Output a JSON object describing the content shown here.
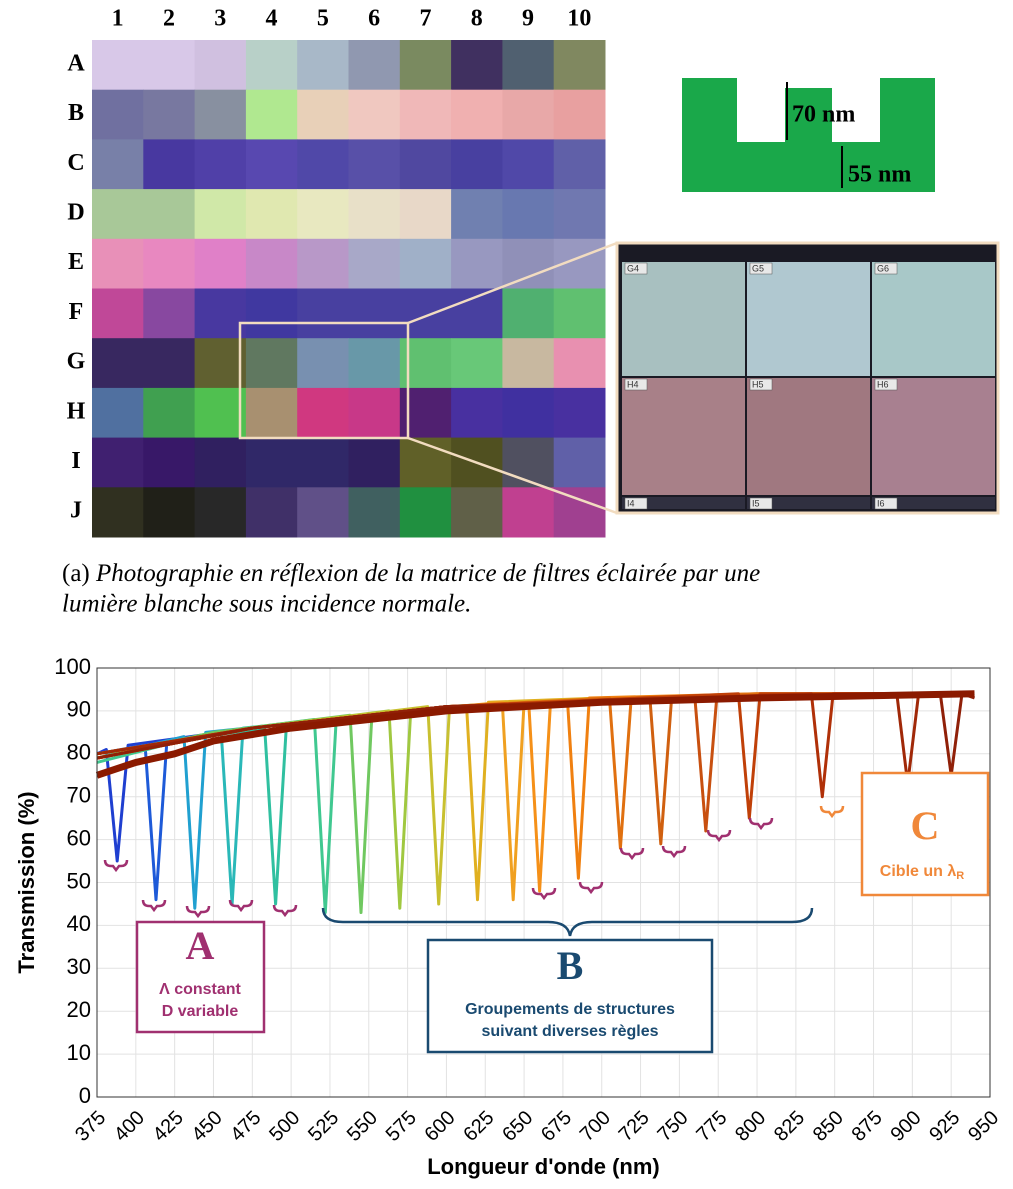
{
  "photo": {
    "columns": [
      "1",
      "2",
      "3",
      "4",
      "5",
      "6",
      "7",
      "8",
      "9",
      "10"
    ],
    "rows": [
      "A",
      "B",
      "C",
      "D",
      "E",
      "F",
      "G",
      "H",
      "I",
      "J"
    ],
    "colors": [
      [
        "#d8c8e8",
        "#d8c8e8",
        "#d0c0e0",
        "#b8d0c8",
        "#a8b8c8",
        "#9098b0",
        "#7a8a60",
        "#403060",
        "#506070",
        "#808860"
      ],
      [
        "#7070a0",
        "#7878a0",
        "#8890a0",
        "#b0e890",
        "#e8d0b8",
        "#f0c8c0",
        "#f0b8b8",
        "#f0b0b0",
        "#e8a8a8",
        "#e8a0a0"
      ],
      [
        "#7880a8",
        "#4838a0",
        "#5040a8",
        "#5848b0",
        "#5048a8",
        "#5850a8",
        "#5048a0",
        "#4840a0",
        "#5048a8",
        "#6060a8"
      ],
      [
        "#a8c898",
        "#a8c898",
        "#d0e8a8",
        "#e0e8b0",
        "#e8e8c0",
        "#e8e0c8",
        "#e8d8c8",
        "#7080b0",
        "#6878b0",
        "#7078b0"
      ],
      [
        "#e890b8",
        "#e888c0",
        "#e080c8",
        "#c888c8",
        "#b898c8",
        "#a8a8c8",
        "#a0b0c8",
        "#9898c0",
        "#9090b8",
        "#9898c0"
      ],
      [
        "#c04898",
        "#8848a0",
        "#4838a0",
        "#4038a0",
        "#4840a0",
        "#4840a0",
        "#4840a0",
        "#4840a0",
        "#50b070",
        "#60c070"
      ],
      [
        "#382860",
        "#382860",
        "#606030",
        "#607860",
        "#7890b0",
        "#6898a8",
        "#60c070",
        "#68c878",
        "#c8b8a0",
        "#e890b0"
      ],
      [
        "#5070a0",
        "#40a050",
        "#50c050",
        "#a89070",
        "#d03880",
        "#c83888",
        "#502070",
        "#4830a0",
        "#4030a0",
        "#4830a0"
      ],
      [
        "#402070",
        "#381868",
        "#302060",
        "#302868",
        "#302868",
        "#302060",
        "#606028",
        "#505020",
        "#505060",
        "#6060a8"
      ],
      [
        "#303020",
        "#202018",
        "#282828",
        "#403068",
        "#605088",
        "#406060",
        "#209040",
        "#606048",
        "#c04090",
        "#a04090"
      ]
    ],
    "zoom": {
      "labels": [
        [
          "G4",
          "G5",
          "G6"
        ],
        [
          "H4",
          "H5",
          "H6"
        ],
        [
          "I4",
          "I5",
          "I6"
        ]
      ],
      "colors": [
        [
          "#a8c0c0",
          "#b0c8d0",
          "#a8c8c8"
        ],
        [
          "#a88088",
          "#a07880",
          "#a88090"
        ],
        [
          "#303040",
          "#303040",
          "#303040"
        ]
      ]
    }
  },
  "schematic": {
    "depth_label": "70 nm",
    "height_label": "55 nm"
  },
  "caption": {
    "label": "(a)",
    "text": [
      "Photographie en réflexion de la matrice de filtres éclairée par une",
      "lumière blanche sous incidence normale."
    ]
  },
  "chart_data": {
    "type": "line",
    "xlabel": "Longueur d'onde (nm)",
    "ylabel": "Transmission (%)",
    "xlim": [
      375,
      950
    ],
    "ylim": [
      0,
      100
    ],
    "xticks": [
      375,
      400,
      425,
      450,
      475,
      500,
      525,
      550,
      575,
      600,
      625,
      650,
      675,
      700,
      725,
      750,
      775,
      800,
      825,
      850,
      875,
      900,
      925,
      950
    ],
    "yticks": [
      0,
      10,
      20,
      30,
      40,
      50,
      60,
      70,
      80,
      90,
      100
    ],
    "grid": true,
    "series": [
      {
        "color": "#1f3fd0",
        "x": [
          375,
          381,
          388,
          395,
          475,
          600,
          940
        ],
        "values": [
          80,
          81,
          55,
          82,
          86,
          91,
          94
        ]
      },
      {
        "color": "#1e5ad8",
        "x": [
          375,
          406,
          413,
          420,
          475,
          600,
          940
        ],
        "values": [
          80,
          82,
          46,
          83,
          86,
          91,
          94
        ]
      },
      {
        "color": "#20a0d0",
        "x": [
          375,
          431,
          438,
          445,
          525,
          600,
          940
        ],
        "values": [
          79,
          84,
          44,
          85,
          88,
          91,
          94
        ]
      },
      {
        "color": "#2ab8b8",
        "x": [
          375,
          425,
          455,
          462,
          469,
          550,
          650,
          940
        ],
        "values": [
          80,
          83,
          85,
          45,
          86,
          89,
          92,
          94
        ]
      },
      {
        "color": "#30c0a0",
        "x": [
          375,
          425,
          483,
          490,
          497,
          575,
          650,
          940
        ],
        "values": [
          79,
          83,
          86,
          45,
          87,
          90,
          92,
          94
        ]
      },
      {
        "color": "#40c890",
        "x": [
          375,
          450,
          515,
          522,
          529,
          600,
          700,
          940
        ],
        "values": [
          78,
          85,
          88,
          43,
          88,
          91,
          93,
          94
        ]
      },
      {
        "color": "#70c860",
        "x": [
          375,
          450,
          538,
          545,
          552,
          650,
          940
        ],
        "values": [
          79,
          85,
          89,
          43,
          89,
          92,
          94
        ]
      },
      {
        "color": "#a0c840",
        "x": [
          375,
          475,
          563,
          570,
          577,
          650,
          940
        ],
        "values": [
          80,
          86,
          90,
          44,
          90,
          92,
          94
        ]
      },
      {
        "color": "#c8c030",
        "x": [
          375,
          475,
          588,
          595,
          602,
          700,
          940
        ],
        "values": [
          79,
          86,
          91,
          45,
          91,
          93,
          94
        ]
      },
      {
        "color": "#e0b020",
        "x": [
          375,
          475,
          550,
          613,
          620,
          627,
          700,
          940
        ],
        "values": [
          80,
          86,
          89,
          91,
          46,
          92,
          93,
          94
        ]
      },
      {
        "color": "#f0a020",
        "x": [
          375,
          475,
          550,
          636,
          643,
          650,
          750,
          940
        ],
        "values": [
          79,
          86,
          89,
          92,
          46,
          92,
          93,
          94
        ]
      },
      {
        "color": "#f59018",
        "x": [
          375,
          475,
          575,
          653,
          660,
          667,
          750,
          940
        ],
        "values": [
          80,
          86,
          90,
          92,
          48,
          92,
          93,
          94
        ]
      },
      {
        "color": "#f08010",
        "x": [
          375,
          475,
          575,
          678,
          685,
          692,
          800,
          940
        ],
        "values": [
          80,
          86,
          90,
          92,
          51,
          93,
          94,
          94
        ]
      },
      {
        "color": "#e07010",
        "x": [
          375,
          475,
          600,
          705,
          712,
          719,
          800,
          940
        ],
        "values": [
          79,
          86,
          91,
          93,
          58,
          93,
          94,
          94
        ]
      },
      {
        "color": "#d06010",
        "x": [
          375,
          475,
          600,
          731,
          738,
          745,
          850,
          940
        ],
        "values": [
          80,
          86,
          91,
          93,
          59,
          93,
          94,
          94
        ]
      },
      {
        "color": "#c85010",
        "x": [
          375,
          475,
          600,
          760,
          767,
          774,
          850,
          940
        ],
        "values": [
          79,
          86,
          91,
          93,
          62,
          93,
          94,
          94
        ]
      },
      {
        "color": "#c04008",
        "x": [
          375,
          475,
          600,
          788,
          795,
          802,
          900,
          940
        ],
        "values": [
          80,
          86,
          91,
          94,
          65,
          94,
          94,
          94
        ]
      },
      {
        "color": "#b03008",
        "x": [
          375,
          475,
          600,
          835,
          842,
          849,
          940
        ],
        "values": [
          79,
          86,
          91,
          94,
          70,
          94,
          94
        ]
      },
      {
        "color": "#a02808",
        "x": [
          375,
          475,
          600,
          890,
          897,
          904,
          940
        ],
        "values": [
          80,
          86,
          91,
          94,
          73,
          94,
          94
        ]
      },
      {
        "color": "#902008",
        "x": [
          375,
          475,
          600,
          918,
          925,
          932,
          940
        ],
        "values": [
          79,
          86,
          91,
          94,
          75,
          94,
          93
        ]
      },
      {
        "color": "#8b1a00",
        "x": [
          375,
          400,
          425,
          450,
          500,
          550,
          600,
          700,
          800,
          940
        ],
        "values": [
          75,
          78,
          80,
          83,
          86,
          88,
          90,
          92,
          93,
          94
        ]
      }
    ],
    "annotations": {
      "A": {
        "letter": "A",
        "lines": [
          "Λ constant",
          "D variable"
        ]
      },
      "B": {
        "letter": "B",
        "lines": [
          "Groupements de structures",
          "suivant diverses règles"
        ]
      },
      "C": {
        "letter": "C",
        "text": "Cible un λ",
        "subscript": "R"
      }
    }
  }
}
